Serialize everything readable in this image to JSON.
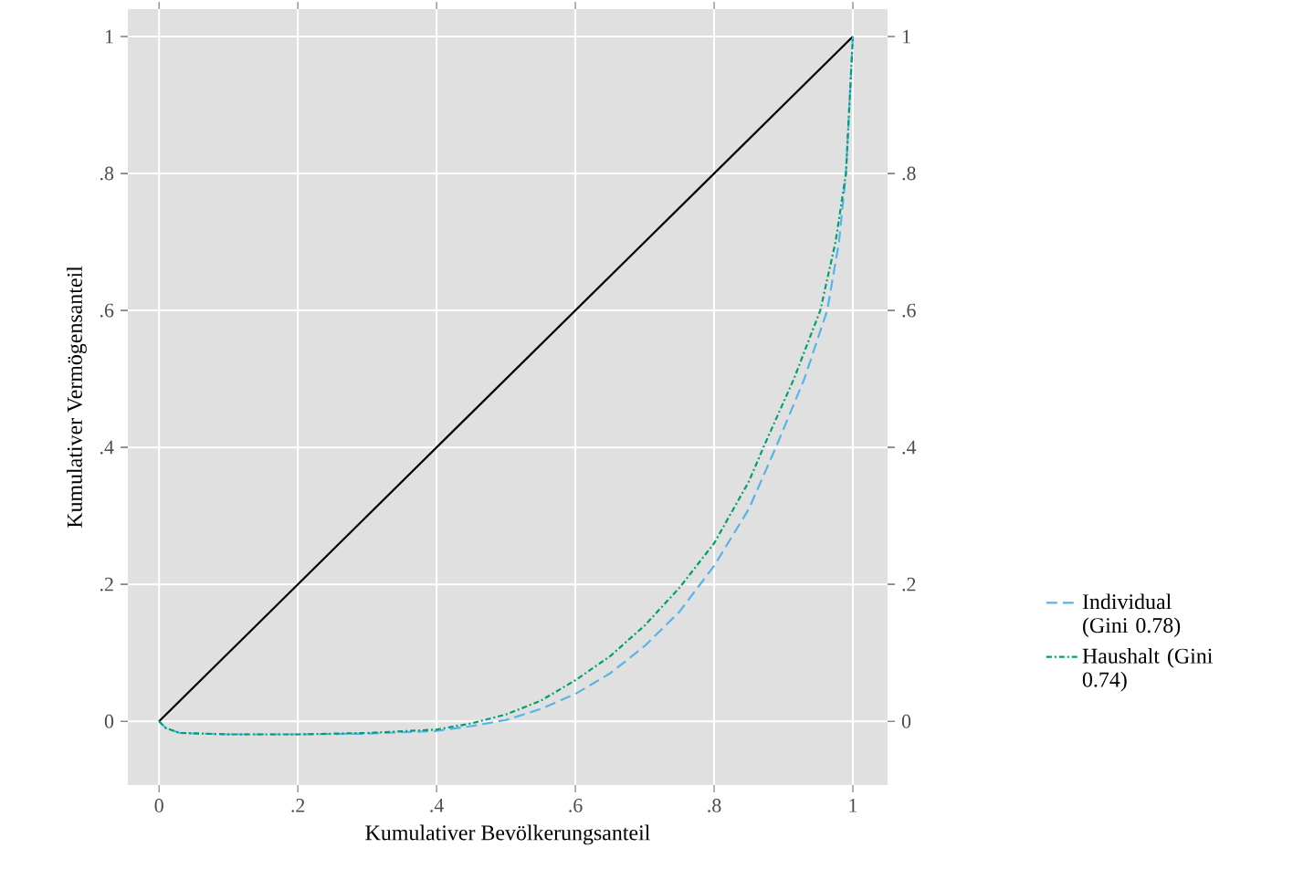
{
  "chart_data": {
    "type": "line",
    "xlabel": "Kumulativer Bevölkerungsanteil",
    "ylabel": "Kumulativer Vermögensanteil",
    "xlim": [
      -0.045,
      1.05
    ],
    "ylim": [
      -0.093,
      1.04
    ],
    "y2lim": [
      -0.093,
      1.04
    ],
    "xticks": [
      0,
      {
        "value": 0.2,
        "label": ".2"
      },
      {
        "value": 0.4,
        "label": ".4"
      },
      {
        "value": 0.6,
        "label": ".6"
      },
      {
        "value": 0.8,
        "label": ".8"
      },
      1
    ],
    "yticks": [
      0,
      {
        "value": 0.2,
        "label": ".2"
      },
      {
        "value": 0.4,
        "label": ".4"
      },
      {
        "value": 0.6,
        "label": ".6"
      },
      {
        "value": 0.8,
        "label": ".8"
      },
      1
    ],
    "y2ticks": [
      0,
      {
        "value": 0.2,
        "label": ".2"
      },
      {
        "value": 0.4,
        "label": ".4"
      },
      {
        "value": 0.6,
        "label": ".6"
      },
      {
        "value": 0.8,
        "label": ".8"
      },
      1
    ],
    "grid": true,
    "legend": "right",
    "series": [
      {
        "color": "#000000",
        "line_style": "solid",
        "x": [
          0,
          1
        ],
        "values": [
          0,
          1
        ]
      },
      {
        "name": "Individual (Gini 0.78)",
        "color": "#56b4e9",
        "line_style": "dashed",
        "x": [
          0,
          0.01,
          0.03,
          0.1,
          0.2,
          0.3,
          0.4,
          0.45,
          0.5,
          0.55,
          0.6,
          0.65,
          0.7,
          0.75,
          0.8,
          0.85,
          0.889,
          0.93,
          0.963,
          0.98,
          0.99,
          1
        ],
        "values": [
          0,
          -0.01,
          -0.017,
          -0.019,
          -0.019,
          -0.018,
          -0.014,
          -0.007,
          0.002,
          0.018,
          0.04,
          0.07,
          0.11,
          0.16,
          0.227,
          0.31,
          0.4,
          0.5,
          0.6,
          0.7,
          0.8,
          1
        ]
      },
      {
        "name": "Haushalt (Gini 0.74)",
        "color": "#009e73",
        "line_style": "dashdot",
        "x": [
          0,
          0.01,
          0.03,
          0.1,
          0.2,
          0.3,
          0.4,
          0.45,
          0.5,
          0.55,
          0.6,
          0.65,
          0.7,
          0.75,
          0.8,
          0.85,
          0.871,
          0.915,
          0.953,
          0.975,
          0.99,
          1
        ],
        "values": [
          0,
          -0.01,
          -0.017,
          -0.019,
          -0.019,
          -0.017,
          -0.012,
          -0.003,
          0.01,
          0.03,
          0.06,
          0.095,
          0.14,
          0.195,
          0.26,
          0.35,
          0.4,
          0.5,
          0.6,
          0.7,
          0.8,
          1
        ]
      }
    ]
  }
}
